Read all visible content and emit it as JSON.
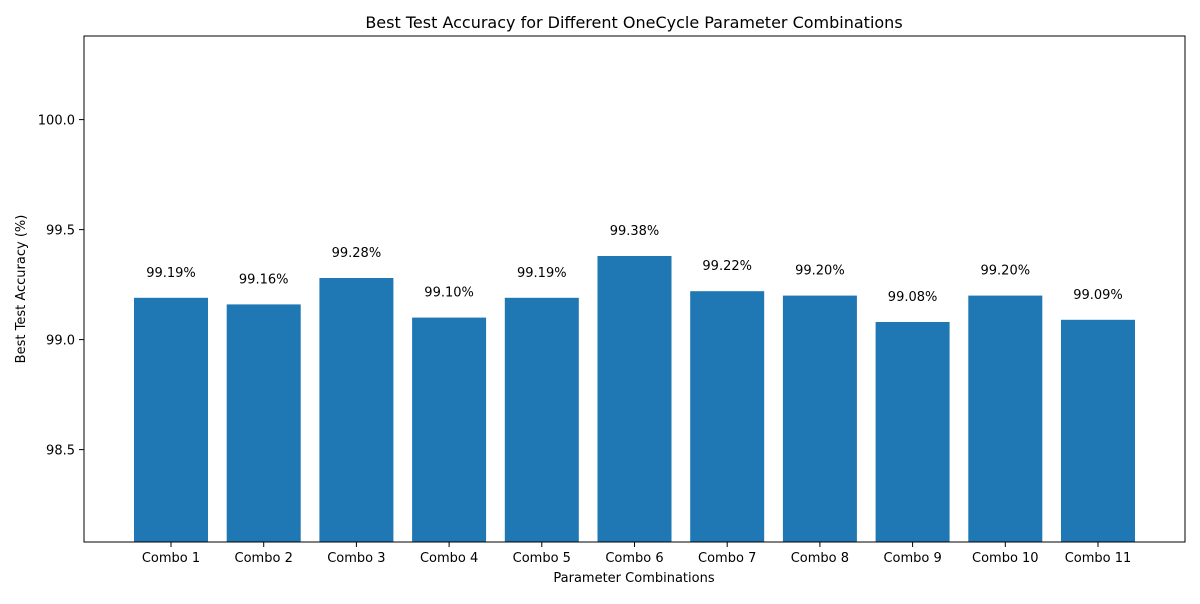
{
  "chart_data": {
    "type": "bar",
    "title": "Best Test Accuracy for Different OneCycle Parameter Combinations",
    "xlabel": "Parameter Combinations",
    "ylabel": "Best Test Accuracy (%)",
    "categories": [
      "Combo 1",
      "Combo 2",
      "Combo 3",
      "Combo 4",
      "Combo 5",
      "Combo 6",
      "Combo 7",
      "Combo 8",
      "Combo 9",
      "Combo 10",
      "Combo 11"
    ],
    "values": [
      99.19,
      99.16,
      99.28,
      99.1,
      99.19,
      99.38,
      99.22,
      99.2,
      99.08,
      99.2,
      99.09
    ],
    "data_labels": [
      "99.19%",
      "99.16%",
      "99.28%",
      "99.10%",
      "99.19%",
      "99.38%",
      "99.22%",
      "99.20%",
      "99.08%",
      "99.20%",
      "99.09%"
    ],
    "ylim": [
      98.08,
      100.38
    ],
    "yticks": [
      98.5,
      99.0,
      99.5,
      100.0
    ],
    "ytick_labels": [
      "98.5",
      "99.0",
      "99.5",
      "100.0"
    ],
    "bar_color": "#1f77b4",
    "grid": false,
    "legend": "none"
  }
}
